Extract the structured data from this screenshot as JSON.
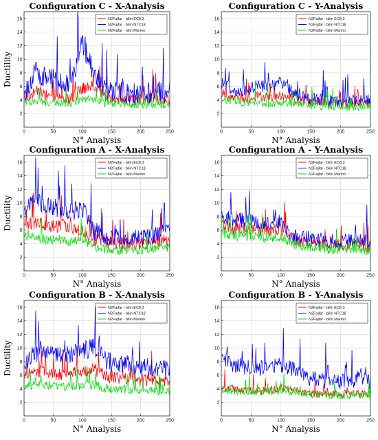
{
  "chart_data": [
    {
      "type": "line",
      "title": "Configuration C - X-Analysis",
      "xlabel": "N° Analysis",
      "ylabel": "Ductility",
      "xlim": [
        0,
        250
      ],
      "ylim": [
        0,
        17
      ],
      "xticks": [
        0,
        50,
        100,
        150,
        200,
        250
      ],
      "yticks": [
        2,
        4,
        6,
        8,
        10,
        12,
        14,
        16
      ],
      "grid": true,
      "legend_position": "top-right",
      "series": [
        {
          "name": "N2Fajfar - bilin EC8.3",
          "color": "#ff0000",
          "x": [
            0,
            20,
            40,
            60,
            80,
            100,
            120,
            140,
            160,
            180,
            200,
            220,
            250
          ],
          "values": [
            4.0,
            5.2,
            4.6,
            4.4,
            4.2,
            5.6,
            6.2,
            4.4,
            4.2,
            4.0,
            4.0,
            4.2,
            4.0
          ]
        },
        {
          "name": "N2Fajfar - bilin NTC18",
          "color": "#0000ff",
          "x": [
            0,
            20,
            40,
            60,
            80,
            100,
            120,
            140,
            160,
            180,
            200,
            220,
            250
          ],
          "values": [
            4.5,
            8.0,
            7.0,
            6.2,
            6.0,
            12.0,
            8.0,
            5.5,
            5.2,
            4.8,
            4.5,
            5.0,
            5.0
          ]
        },
        {
          "name": "N2Fajfar - bilin Marino",
          "color": "#00dd00",
          "x": [
            0,
            20,
            40,
            60,
            80,
            100,
            120,
            140,
            160,
            180,
            200,
            220,
            250
          ],
          "values": [
            3.5,
            3.8,
            3.6,
            3.5,
            3.4,
            4.0,
            4.0,
            3.4,
            3.4,
            3.2,
            3.2,
            3.3,
            3.3
          ]
        }
      ]
    },
    {
      "type": "line",
      "title": "Configuration C - Y-Analysis",
      "xlabel": "N° Analysis",
      "ylabel": "",
      "xlim": [
        0,
        250
      ],
      "ylim": [
        0,
        17
      ],
      "xticks": [
        0,
        50,
        100,
        150,
        200,
        250
      ],
      "yticks": [
        2,
        4,
        6,
        8,
        10,
        12,
        14,
        16
      ],
      "grid": true,
      "legend_position": "top-right",
      "series": [
        {
          "name": "N2Fajfar - bilin EC8.3",
          "color": "#ff0000",
          "x": [
            0,
            20,
            40,
            60,
            80,
            100,
            120,
            140,
            160,
            180,
            200,
            220,
            250
          ],
          "values": [
            5.0,
            4.5,
            4.2,
            4.5,
            4.3,
            4.5,
            4.2,
            3.8,
            3.6,
            3.5,
            3.4,
            3.4,
            3.5
          ]
        },
        {
          "name": "N2Fajfar - bilin NTC18",
          "color": "#0000ff",
          "x": [
            0,
            20,
            40,
            60,
            80,
            100,
            120,
            140,
            160,
            180,
            200,
            220,
            250
          ],
          "values": [
            6.5,
            5.5,
            5.2,
            6.0,
            5.8,
            6.5,
            5.0,
            4.2,
            4.0,
            3.8,
            3.6,
            3.8,
            4.0
          ]
        },
        {
          "name": "N2Fajfar - bilin Marino",
          "color": "#00dd00",
          "x": [
            0,
            20,
            40,
            60,
            80,
            100,
            120,
            140,
            160,
            180,
            200,
            220,
            250
          ],
          "values": [
            4.2,
            3.8,
            3.5,
            3.6,
            3.4,
            3.5,
            3.4,
            3.2,
            3.0,
            3.0,
            2.9,
            2.9,
            3.0
          ]
        }
      ]
    },
    {
      "type": "line",
      "title": "Configuration A - X-Analysis",
      "xlabel": "N° Analysis",
      "ylabel": "Ductility",
      "xlim": [
        0,
        250
      ],
      "ylim": [
        0,
        17
      ],
      "xticks": [
        0,
        50,
        100,
        150,
        200,
        250
      ],
      "yticks": [
        2,
        4,
        6,
        8,
        10,
        12,
        14,
        16
      ],
      "grid": true,
      "legend_position": "top-right",
      "series": [
        {
          "name": "N2Fajfar - bilin EC8.3",
          "color": "#ff0000",
          "x": [
            0,
            20,
            40,
            60,
            80,
            100,
            120,
            140,
            160,
            180,
            200,
            220,
            250
          ],
          "values": [
            7.0,
            7.0,
            6.5,
            6.5,
            6.2,
            6.0,
            4.5,
            4.2,
            4.0,
            4.0,
            4.0,
            4.2,
            4.5
          ]
        },
        {
          "name": "N2Fajfar - bilin NTC18",
          "color": "#0000ff",
          "x": [
            0,
            20,
            40,
            60,
            80,
            100,
            120,
            140,
            160,
            180,
            200,
            220,
            250
          ],
          "values": [
            9.0,
            10.0,
            9.5,
            9.0,
            8.5,
            9.0,
            5.5,
            5.0,
            4.8,
            4.5,
            4.8,
            5.0,
            5.5
          ]
        },
        {
          "name": "N2Fajfar - bilin Marino",
          "color": "#00dd00",
          "x": [
            0,
            20,
            40,
            60,
            80,
            100,
            120,
            140,
            160,
            180,
            200,
            220,
            250
          ],
          "values": [
            5.0,
            4.8,
            4.5,
            4.5,
            4.2,
            4.5,
            3.5,
            3.2,
            3.0,
            3.0,
            3.0,
            3.2,
            3.5
          ]
        }
      ]
    },
    {
      "type": "line",
      "title": "Configuration A - Y-Analysis",
      "xlabel": "N° Analysis",
      "ylabel": "",
      "xlim": [
        0,
        250
      ],
      "ylim": [
        0,
        17
      ],
      "xticks": [
        0,
        50,
        100,
        150,
        200,
        250
      ],
      "yticks": [
        2,
        4,
        6,
        8,
        10,
        12,
        14,
        16
      ],
      "grid": true,
      "legend_position": "top-right",
      "series": [
        {
          "name": "N2Fajfar - bilin EC8.3",
          "color": "#ff0000",
          "x": [
            0,
            20,
            40,
            60,
            80,
            100,
            120,
            140,
            160,
            180,
            200,
            220,
            250
          ],
          "values": [
            6.5,
            6.2,
            6.0,
            6.0,
            5.8,
            6.0,
            4.5,
            4.2,
            4.0,
            3.8,
            3.8,
            3.8,
            3.5
          ]
        },
        {
          "name": "N2Fajfar - bilin NTC18",
          "color": "#0000ff",
          "x": [
            0,
            20,
            40,
            60,
            80,
            100,
            120,
            140,
            160,
            180,
            200,
            220,
            250
          ],
          "values": [
            8.0,
            7.5,
            7.2,
            7.0,
            6.8,
            7.2,
            5.0,
            4.8,
            4.5,
            4.2,
            4.2,
            4.5,
            4.0
          ]
        },
        {
          "name": "N2Fajfar - bilin Marino",
          "color": "#00dd00",
          "x": [
            0,
            20,
            40,
            60,
            80,
            100,
            120,
            140,
            160,
            180,
            200,
            220,
            250
          ],
          "values": [
            5.5,
            5.2,
            5.0,
            5.0,
            4.8,
            5.0,
            3.8,
            3.5,
            3.4,
            3.2,
            3.2,
            3.2,
            3.0
          ]
        }
      ]
    },
    {
      "type": "line",
      "title": "Configuration B - X-Analysis",
      "xlabel": "N° Analysis",
      "ylabel": "Ductility",
      "xlim": [
        0,
        250
      ],
      "ylim": [
        0,
        17
      ],
      "xticks": [
        0,
        50,
        100,
        150,
        200,
        250
      ],
      "yticks": [
        2,
        4,
        6,
        8,
        10,
        12,
        14,
        16
      ],
      "grid": true,
      "legend_position": "top-right",
      "series": [
        {
          "name": "N2Fajfar - bilin EC8.3",
          "color": "#ff0000",
          "x": [
            0,
            20,
            40,
            60,
            80,
            100,
            120,
            140,
            160,
            180,
            200,
            220,
            250
          ],
          "values": [
            6.0,
            6.5,
            6.2,
            6.0,
            6.0,
            6.5,
            6.8,
            5.8,
            5.5,
            5.5,
            5.2,
            5.2,
            5.0
          ]
        },
        {
          "name": "N2Fajfar - bilin NTC18",
          "color": "#0000ff",
          "x": [
            0,
            20,
            40,
            60,
            80,
            100,
            120,
            140,
            160,
            180,
            200,
            220,
            250
          ],
          "values": [
            8.0,
            9.0,
            9.5,
            9.0,
            9.0,
            9.5,
            10.0,
            8.0,
            7.5,
            7.5,
            7.0,
            7.0,
            6.5
          ]
        },
        {
          "name": "N2Fajfar - bilin Marino",
          "color": "#00dd00",
          "x": [
            0,
            20,
            40,
            60,
            80,
            100,
            120,
            140,
            160,
            180,
            200,
            220,
            250
          ],
          "values": [
            4.2,
            4.5,
            4.5,
            4.3,
            4.2,
            4.5,
            4.5,
            4.0,
            3.8,
            3.8,
            3.6,
            3.6,
            3.5
          ]
        }
      ]
    },
    {
      "type": "line",
      "title": "Configuration B - Y-Analysis",
      "xlabel": "N° Analysis",
      "ylabel": "",
      "xlim": [
        0,
        250
      ],
      "ylim": [
        0,
        17
      ],
      "xticks": [
        0,
        50,
        100,
        150,
        200,
        250
      ],
      "yticks": [
        2,
        4,
        6,
        8,
        10,
        12,
        14,
        16
      ],
      "grid": true,
      "legend_position": "top-right",
      "series": [
        {
          "name": "N2Fajfar - bilin EC8.3",
          "color": "#ff0000",
          "x": [
            0,
            20,
            40,
            60,
            80,
            100,
            120,
            140,
            160,
            180,
            200,
            220,
            250
          ],
          "values": [
            4.0,
            4.0,
            3.8,
            3.6,
            3.8,
            4.0,
            3.8,
            3.4,
            3.2,
            3.2,
            3.2,
            3.2,
            3.2
          ]
        },
        {
          "name": "N2Fajfar - bilin NTC18",
          "color": "#0000ff",
          "x": [
            0,
            20,
            40,
            60,
            80,
            100,
            120,
            140,
            160,
            180,
            200,
            220,
            250
          ],
          "values": [
            8.5,
            7.5,
            7.0,
            6.8,
            7.0,
            7.5,
            6.8,
            5.5,
            5.2,
            5.0,
            5.0,
            5.2,
            5.0
          ]
        },
        {
          "name": "N2Fajfar - bilin Marino",
          "color": "#00dd00",
          "x": [
            0,
            20,
            40,
            60,
            80,
            100,
            120,
            140,
            160,
            180,
            200,
            220,
            250
          ],
          "values": [
            3.8,
            3.6,
            3.5,
            3.4,
            3.5,
            3.6,
            3.5,
            3.2,
            3.0,
            3.0,
            3.0,
            3.0,
            3.0
          ]
        }
      ]
    }
  ]
}
